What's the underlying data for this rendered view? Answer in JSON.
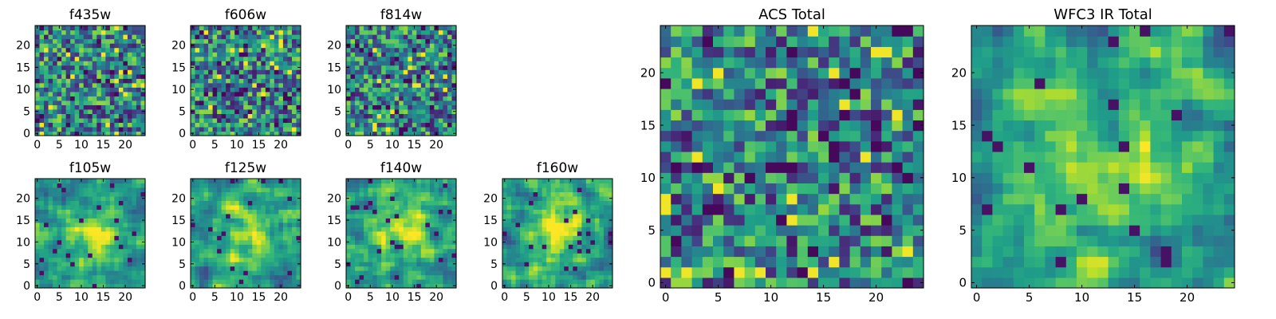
{
  "chart_data": [
    {
      "type": "heatmap",
      "title": "f435w",
      "xticks": [
        "0",
        "5",
        "10",
        "15",
        "20"
      ],
      "yticks": [
        "0",
        "5",
        "10",
        "15",
        "20"
      ],
      "grid_size": 25,
      "xlim": [
        -0.5,
        24.5
      ],
      "ylim": [
        -0.5,
        24.5
      ],
      "colormap": "viridis",
      "structure": "noise"
    },
    {
      "type": "heatmap",
      "title": "f606w",
      "xticks": [
        "0",
        "5",
        "10",
        "15",
        "20"
      ],
      "yticks": [
        "0",
        "5",
        "10",
        "15",
        "20"
      ],
      "grid_size": 25,
      "xlim": [
        -0.5,
        24.5
      ],
      "ylim": [
        -0.5,
        24.5
      ],
      "colormap": "viridis",
      "structure": "noise"
    },
    {
      "type": "heatmap",
      "title": "f814w",
      "xticks": [
        "0",
        "5",
        "10",
        "15",
        "20"
      ],
      "yticks": [
        "0",
        "5",
        "10",
        "15",
        "20"
      ],
      "grid_size": 25,
      "xlim": [
        -0.5,
        24.5
      ],
      "ylim": [
        -0.5,
        24.5
      ],
      "colormap": "viridis",
      "structure": "noise"
    },
    {
      "type": "heatmap",
      "title": "f105w",
      "xticks": [
        "0",
        "5",
        "10",
        "15",
        "20"
      ],
      "yticks": [
        "0",
        "5",
        "10",
        "15",
        "20"
      ],
      "grid_size": 25,
      "xlim": [
        -0.5,
        24.5
      ],
      "ylim": [
        -0.5,
        24.5
      ],
      "colormap": "viridis",
      "structure": "central source"
    },
    {
      "type": "heatmap",
      "title": "f125w",
      "xticks": [
        "0",
        "5",
        "10",
        "15",
        "20"
      ],
      "yticks": [
        "0",
        "5",
        "10",
        "15",
        "20"
      ],
      "grid_size": 25,
      "xlim": [
        -0.5,
        24.5
      ],
      "ylim": [
        -0.5,
        24.5
      ],
      "colormap": "viridis",
      "structure": "central source"
    },
    {
      "type": "heatmap",
      "title": "f140w",
      "xticks": [
        "0",
        "5",
        "10",
        "15",
        "20"
      ],
      "yticks": [
        "0",
        "5",
        "10",
        "15",
        "20"
      ],
      "grid_size": 25,
      "xlim": [
        -0.5,
        24.5
      ],
      "ylim": [
        -0.5,
        24.5
      ],
      "colormap": "viridis",
      "structure": "central source"
    },
    {
      "type": "heatmap",
      "title": "f160w",
      "xticks": [
        "0",
        "5",
        "10",
        "15",
        "20"
      ],
      "yticks": [
        "0",
        "5",
        "10",
        "15",
        "20"
      ],
      "grid_size": 25,
      "xlim": [
        -0.5,
        24.5
      ],
      "ylim": [
        -0.5,
        24.5
      ],
      "colormap": "viridis",
      "structure": "central source"
    },
    {
      "type": "heatmap",
      "title": "ACS Total",
      "xticks": [
        "0",
        "5",
        "10",
        "15",
        "20"
      ],
      "yticks": [
        "0",
        "5",
        "10",
        "15",
        "20"
      ],
      "grid_size": 25,
      "xlim": [
        -0.5,
        24.5
      ],
      "ylim": [
        -0.5,
        24.5
      ],
      "colormap": "viridis",
      "structure": "noise"
    },
    {
      "type": "heatmap",
      "title": "WFC3 IR Total",
      "xticks": [
        "0",
        "5",
        "10",
        "15",
        "20"
      ],
      "yticks": [
        "0",
        "5",
        "10",
        "15",
        "20"
      ],
      "grid_size": 25,
      "xlim": [
        -0.5,
        24.5
      ],
      "ylim": [
        -0.5,
        24.5
      ],
      "colormap": "viridis",
      "structure": "central source"
    }
  ]
}
